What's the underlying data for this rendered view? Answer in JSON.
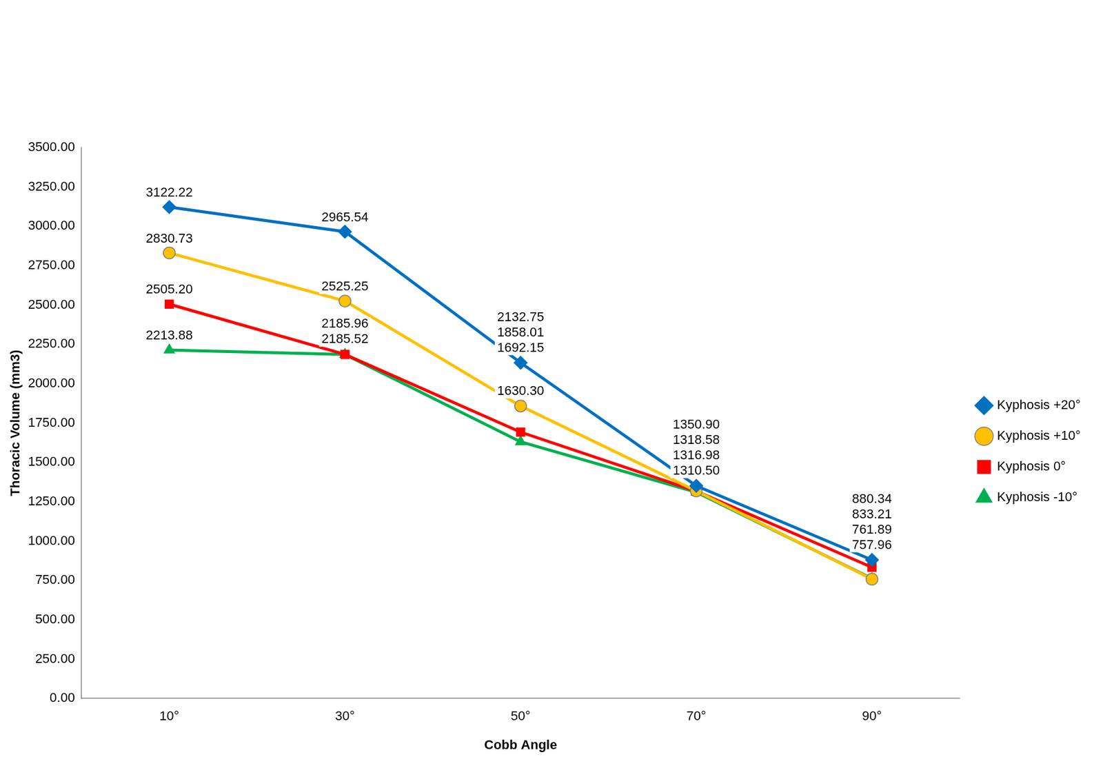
{
  "chart_data": {
    "type": "line",
    "x_label": "Cobb Angle",
    "y_label": "Thoracic Volume (mm3)",
    "categories": [
      "10°",
      "30°",
      "50°",
      "70°",
      "90°"
    ],
    "series": [
      {
        "name": "Kyphosis +20°",
        "color": "#0070C0",
        "marker": "diamond",
        "values": [
          3122.22,
          2965.54,
          2132.75,
          1350.9,
          880.34
        ],
        "value_labels": [
          "3122.22",
          "2965.54",
          "2132.75",
          "1350.90",
          "880.34"
        ]
      },
      {
        "name": "Kyphosis +10°",
        "color": "#FFC000",
        "marker": "circle",
        "values": [
          2830.73,
          2525.25,
          1858.01,
          1318.58,
          757.96
        ],
        "value_labels": [
          "2830.73",
          "2525.25",
          "1858.01",
          "1318.58",
          "757.96"
        ]
      },
      {
        "name": "Kyphosis 0°",
        "color": "#FF0000",
        "marker": "square",
        "values": [
          2505.2,
          2185.96,
          1692.15,
          1316.98,
          833.21
        ],
        "value_labels": [
          "2505.20",
          "2185.96",
          "1692.15",
          "1316.98",
          "833.21"
        ]
      },
      {
        "name": "Kyphosis -10°",
        "color": "#00B050",
        "marker": "triangle",
        "values": [
          2213.88,
          2185.52,
          1630.3,
          1310.5,
          761.89
        ],
        "value_labels": [
          "2213.88",
          "2185.52",
          "1630.30",
          "1310.50",
          "761.89"
        ]
      }
    ],
    "ylim": [
      0,
      3500
    ],
    "yticks": [
      {
        "value": 0,
        "label": "0.00"
      },
      {
        "value": 250,
        "label": "250.00"
      },
      {
        "value": 500,
        "label": "500.00"
      },
      {
        "value": 750,
        "label": "750.00"
      },
      {
        "value": 1000,
        "label": "1000.00"
      },
      {
        "value": 1250,
        "label": "1250.00"
      },
      {
        "value": 1500,
        "label": "1500.00"
      },
      {
        "value": 1750,
        "label": "1750.00"
      },
      {
        "value": 2000,
        "label": "2000.00"
      },
      {
        "value": 2250,
        "label": "2250.00"
      },
      {
        "value": 2500,
        "label": "2500.00"
      },
      {
        "value": 2750,
        "label": "2750.00"
      },
      {
        "value": 3000,
        "label": "3000.00"
      },
      {
        "value": 3250,
        "label": "3250.00"
      },
      {
        "value": 3500,
        "label": "3500.00"
      }
    ],
    "grid": false,
    "legend": "right",
    "data_labels": true
  }
}
